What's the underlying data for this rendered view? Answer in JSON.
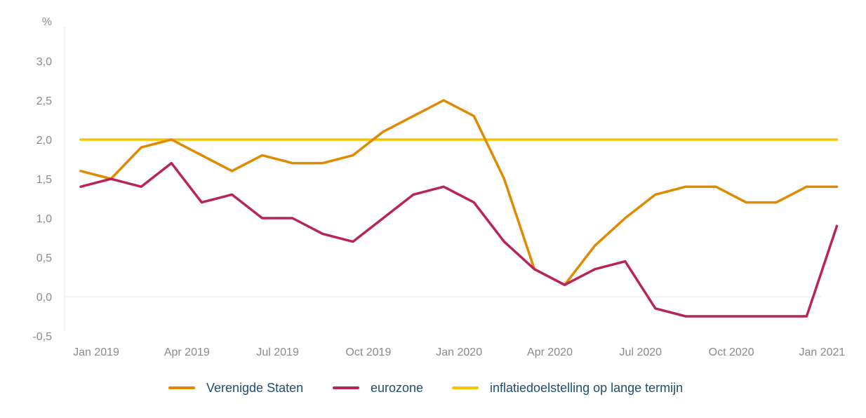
{
  "chart_data": {
    "type": "line",
    "title": "",
    "xlabel": "",
    "ylabel": "%",
    "ylim": [
      -0.5,
      3.5
    ],
    "yticks": [
      "-0,5",
      "0,0",
      "0,5",
      "1,0",
      "1,5",
      "2,0",
      "2,5",
      "3,0"
    ],
    "ytick_values": [
      -0.5,
      0,
      0.5,
      1.0,
      1.5,
      2.0,
      2.5,
      3.0
    ],
    "x": [
      "2019-01",
      "2019-02",
      "2019-03",
      "2019-04",
      "2019-05",
      "2019-06",
      "2019-07",
      "2019-08",
      "2019-09",
      "2019-10",
      "2019-11",
      "2019-12",
      "2020-01",
      "2020-02",
      "2020-03",
      "2020-04",
      "2020-05",
      "2020-06",
      "2020-07",
      "2020-08",
      "2020-09",
      "2020-10",
      "2020-11",
      "2020-12",
      "2021-01",
      "2021-02"
    ],
    "xtick_labels": [
      "Jan 2019",
      "Apr 2019",
      "Jul 2019",
      "Oct 2019",
      "Jan 2020",
      "Apr 2020",
      "Jul 2020",
      "Oct 2020",
      "Jan 2021"
    ],
    "xtick_index": [
      0,
      3,
      6,
      9,
      12,
      15,
      18,
      21,
      24
    ],
    "grid": false,
    "legend_position": "bottom",
    "series": [
      {
        "name": "Verenigde Staten",
        "color": "#e08a00",
        "values": [
          1.6,
          1.5,
          1.9,
          2.0,
          1.8,
          1.6,
          1.8,
          1.7,
          1.7,
          1.8,
          2.1,
          2.3,
          2.5,
          2.3,
          1.5,
          0.35,
          0.15,
          0.65,
          1.0,
          1.3,
          1.4,
          1.4,
          1.2,
          1.2,
          1.4,
          1.4
        ]
      },
      {
        "name": "eurozone",
        "color": "#b8245a",
        "values": [
          1.4,
          1.5,
          1.4,
          1.7,
          1.2,
          1.3,
          1.0,
          1.0,
          0.8,
          0.7,
          1.0,
          1.3,
          1.4,
          1.2,
          0.7,
          0.35,
          0.15,
          0.35,
          0.45,
          -0.15,
          -0.25,
          -0.25,
          -0.25,
          -0.25,
          -0.25,
          0.9
        ]
      },
      {
        "name": "inflatiedoelstelling op lange termijn",
        "color": "#f7c400",
        "values": [
          2.0,
          2.0,
          2.0,
          2.0,
          2.0,
          2.0,
          2.0,
          2.0,
          2.0,
          2.0,
          2.0,
          2.0,
          2.0,
          2.0,
          2.0,
          2.0,
          2.0,
          2.0,
          2.0,
          2.0,
          2.0,
          2.0,
          2.0,
          2.0,
          2.0,
          2.0
        ]
      }
    ]
  }
}
